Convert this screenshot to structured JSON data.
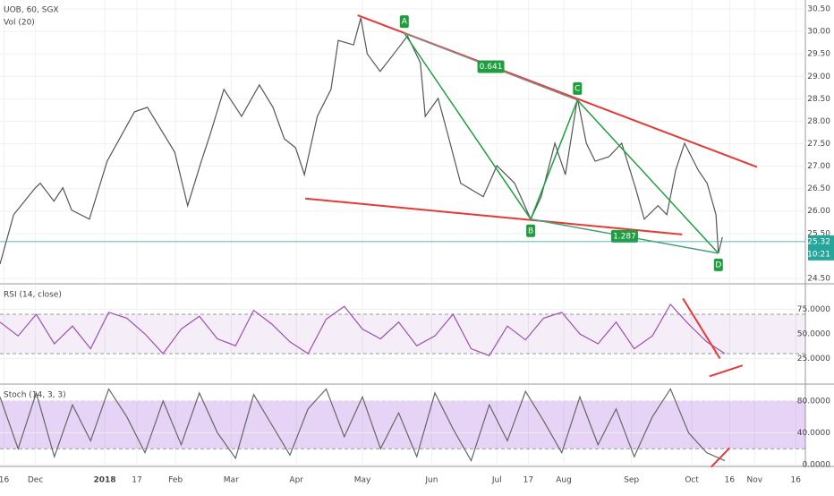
{
  "chart_data": [
    {
      "type": "line",
      "title": "UOB, 60, SGX",
      "subtitle": "Vol (20)",
      "color": "#555555",
      "x": [
        0,
        1.7,
        4.4,
        5,
        6.7,
        7.8,
        8.9,
        11.1,
        13.3,
        16.7,
        18.3,
        20,
        21.7,
        23.3,
        25,
        26.1,
        27.8,
        30,
        32.2,
        33.9,
        35.3,
        36.7,
        37.8,
        39.4,
        41.1,
        42,
        43.9,
        44.8,
        45.6,
        47.2,
        48.9,
        50.6,
        52.2,
        52.8,
        54.4,
        55.6,
        57.2,
        60,
        61.7,
        63.9,
        65.9,
        67.2,
        68.9,
        70.2,
        71.7,
        72.8,
        73.9,
        75.6,
        77.2,
        78.9,
        80,
        81.7,
        82.8,
        83.9,
        85,
        86.7,
        87.8,
        88.9,
        89.2,
        89.7
      ],
      "values": [
        24.82,
        25.92,
        26.52,
        26.62,
        26.22,
        26.52,
        26.02,
        25.82,
        27.11,
        28.21,
        28.31,
        27.81,
        27.31,
        26.12,
        27.11,
        27.71,
        28.71,
        28.11,
        28.81,
        28.31,
        27.61,
        27.41,
        26.81,
        28.11,
        28.71,
        29.8,
        29.7,
        30.3,
        29.5,
        29.11,
        29.5,
        29.9,
        29.3,
        28.11,
        28.51,
        27.71,
        26.62,
        26.32,
        27.01,
        26.62,
        25.82,
        26.32,
        27.51,
        26.81,
        28.51,
        27.51,
        27.11,
        27.21,
        27.51,
        26.52,
        25.82,
        26.12,
        25.92,
        26.91,
        27.51,
        26.91,
        26.62,
        25.92,
        25.06,
        25.42
      ],
      "xlim": [
        0,
        100
      ],
      "xticks": [
        {
          "value": 0.5,
          "label": "16"
        },
        {
          "value": 4.4,
          "label": "Dec"
        },
        {
          "value": 13,
          "label": "2018"
        },
        {
          "value": 17,
          "label": "17"
        },
        {
          "value": 21.8,
          "label": "Feb"
        },
        {
          "value": 28.7,
          "label": "Mar"
        },
        {
          "value": 36.8,
          "label": "Apr"
        },
        {
          "value": 45,
          "label": "May"
        },
        {
          "value": 53.6,
          "label": "Jun"
        },
        {
          "value": 61.7,
          "label": "Jul"
        },
        {
          "value": 65.6,
          "label": "17"
        },
        {
          "value": 70,
          "label": "Aug"
        },
        {
          "value": 78.4,
          "label": "Sep"
        },
        {
          "value": 85.9,
          "label": "Oct"
        },
        {
          "value": 90.6,
          "label": "16"
        },
        {
          "value": 93.7,
          "label": "Nov"
        },
        {
          "value": 98.8,
          "label": "16"
        }
      ],
      "ylim": [
        24.4,
        30.7
      ],
      "yticks": [
        {
          "value": 24.5,
          "label": "24.50"
        },
        {
          "value": 25.5,
          "label": "25.50"
        },
        {
          "value": 26,
          "label": "26.00"
        },
        {
          "value": 26.5,
          "label": "26.50"
        },
        {
          "value": 27,
          "label": "27.00"
        },
        {
          "value": 27.5,
          "label": "27.50"
        },
        {
          "value": 28,
          "label": "28.00"
        },
        {
          "value": 28.5,
          "label": "28.50"
        },
        {
          "value": 29,
          "label": "29.00"
        },
        {
          "value": 29.5,
          "label": "29.50"
        },
        {
          "value": 30,
          "label": "30.00"
        },
        {
          "value": 30.5,
          "label": "30.50"
        }
      ],
      "last": {
        "value": 25.32,
        "time": "10:21",
        "color": "#26a69a"
      },
      "pattern": {
        "color": "#1e9e3e",
        "points": [
          {
            "label": "A",
            "x": 50.2,
            "y": 29.96
          },
          {
            "label": "B",
            "x": 65.9,
            "y": 25.82
          },
          {
            "label": "C",
            "x": 71.7,
            "y": 28.47
          },
          {
            "label": "D",
            "x": 89.2,
            "y": 25.06
          }
        ],
        "ratios": [
          "0.641",
          "1.287"
        ]
      },
      "trendlines": [
        {
          "color": "#e53935",
          "x": [
            44.4,
            94
          ],
          "y": [
            30.36,
            26.98
          ]
        },
        {
          "color": "#e53935",
          "x": [
            37.9,
            84.7
          ],
          "y": [
            26.28,
            25.48
          ]
        }
      ]
    },
    {
      "type": "line",
      "title": "RSI (14, close)",
      "color": "#9c4fb3",
      "x": [
        0,
        2.25,
        4.5,
        6.75,
        9,
        11.25,
        13.5,
        15.75,
        18,
        20.25,
        22.5,
        24.75,
        27,
        29.25,
        31.5,
        33.75,
        36,
        38.25,
        40.5,
        42.75,
        45,
        47.25,
        49.5,
        51.75,
        54,
        56.25,
        58.5,
        60.75,
        63,
        65.25,
        67.5,
        69.75,
        72,
        74.25,
        76.5,
        78.75,
        81,
        83.25,
        85.5,
        87.75,
        90
      ],
      "values": [
        62,
        48,
        70,
        40,
        58,
        35,
        72,
        66,
        50,
        30,
        55,
        68,
        45,
        38,
        74,
        60,
        42,
        30,
        65,
        78,
        55,
        45,
        62,
        38,
        48,
        70,
        35,
        28,
        58,
        44,
        66,
        72,
        50,
        40,
        62,
        35,
        48,
        80,
        60,
        42,
        30
      ],
      "xlim": [
        0,
        100
      ],
      "ylim": [
        0,
        100
      ],
      "yticks": [
        {
          "value": 25,
          "label": "25.0000"
        },
        {
          "value": 50,
          "label": "50.0000"
        },
        {
          "value": 75,
          "label": "75.0000"
        }
      ],
      "band": [
        30,
        70
      ],
      "band_color": "rgba(156,79,179,0.10)",
      "trendlines": [
        {
          "color": "#e53935",
          "x": [
            84.8,
            89.4
          ],
          "y": [
            86,
            25
          ]
        },
        {
          "color": "#e53935",
          "x": [
            88.1,
            92.2
          ],
          "y": [
            7,
            18
          ]
        }
      ]
    },
    {
      "type": "line",
      "title": "Stoch (14, 3, 3)",
      "color": "#666666",
      "x": [
        0,
        2.25,
        4.5,
        6.75,
        9,
        11.25,
        13.5,
        15.75,
        18,
        20.25,
        22.5,
        24.75,
        27,
        29.25,
        31.5,
        33.75,
        36,
        38.25,
        40.5,
        42.75,
        45,
        47.25,
        49.5,
        51.75,
        54,
        56.25,
        58.5,
        60.75,
        63,
        65.25,
        67.5,
        69.75,
        72,
        74.25,
        76.5,
        78.75,
        81,
        83.25,
        85.5,
        87.75,
        90
      ],
      "values": [
        85,
        20,
        90,
        10,
        75,
        30,
        95,
        60,
        15,
        80,
        25,
        90,
        40,
        8,
        88,
        50,
        12,
        70,
        95,
        35,
        85,
        20,
        65,
        10,
        90,
        45,
        5,
        75,
        30,
        92,
        55,
        15,
        85,
        25,
        70,
        10,
        60,
        95,
        40,
        15,
        5
      ],
      "xlim": [
        0,
        100
      ],
      "ylim": [
        0,
        100
      ],
      "yticks": [
        {
          "value": 0,
          "label": "0.0000"
        },
        {
          "value": 40,
          "label": "40.0000"
        },
        {
          "value": 80,
          "label": "80.0000"
        }
      ],
      "band": [
        20,
        80
      ],
      "band_color": "rgba(156,79,220,0.25)",
      "trendlines": [
        {
          "color": "#e53935",
          "x": [
            88.3,
            90.6
          ],
          "y": [
            -3,
            21
          ]
        }
      ]
    }
  ]
}
